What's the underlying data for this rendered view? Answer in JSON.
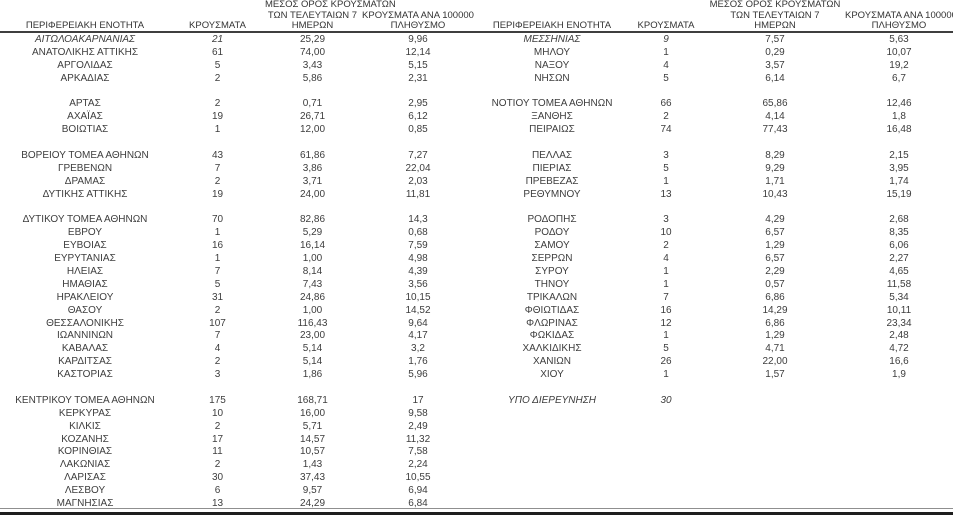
{
  "colors": {
    "text": "#3d3d3d",
    "header_text": "#333333",
    "header_underline": "#3f3f3f",
    "bottom_rule_light": "#8f8f8f",
    "bottom_rule_dark": "#1e1e1e",
    "background": "#ffffff"
  },
  "columns": {
    "region": "ΠΕΡΙΦΕΡΕΙΑΚΗ ΕΝΟΤΗΤΑ",
    "cases": "ΚΡΟΥΣΜΑΤΑ",
    "avg7_line1": "ΜΕΣΟΣ ΟΡΟΣ ΚΡΟΥΣΜΑΤΩΝ",
    "avg7_line2": "ΤΩΝ ΤΕΛΕΥΤΑΙΩΝ 7",
    "avg7_line3": "ΗΜΕΡΩΝ",
    "per100k_line1": "ΚΡΟΥΣΜΑΤΑ ΑΝΑ 100000",
    "per100k_line2": "ΠΛΗΘΥΣΜΟ"
  },
  "left_rows": [
    {
      "region": "ΑΙΤΩΛΟΑΚΑΡΝΑΝΙΑΣ",
      "cases": "21",
      "avg7": "25,29",
      "per100k": "9,96",
      "em": true
    },
    {
      "region": "ΑΝΑΤΟΛΙΚΗΣ ΑΤΤΙΚΗΣ",
      "cases": "61",
      "avg7": "74,00",
      "per100k": "12,14"
    },
    {
      "region": "ΑΡΓΟΛΙΔΑΣ",
      "cases": "5",
      "avg7": "3,43",
      "per100k": "5,15"
    },
    {
      "region": "ΑΡΚΑΔΙΑΣ",
      "cases": "2",
      "avg7": "5,86",
      "per100k": "2,31"
    },
    {
      "blank": true
    },
    {
      "region": "ΑΡΤΑΣ",
      "cases": "2",
      "avg7": "0,71",
      "per100k": "2,95"
    },
    {
      "region": "ΑΧΑΪΑΣ",
      "cases": "19",
      "avg7": "26,71",
      "per100k": "6,12"
    },
    {
      "region": "ΒΟΙΩΤΙΑΣ",
      "cases": "1",
      "avg7": "12,00",
      "per100k": "0,85"
    },
    {
      "blank": true
    },
    {
      "region": "ΒΟΡΕΙΟΥ ΤΟΜΕΑ ΑΘΗΝΩΝ",
      "cases": "43",
      "avg7": "61,86",
      "per100k": "7,27"
    },
    {
      "region": "ΓΡΕΒΕΝΩΝ",
      "cases": "7",
      "avg7": "3,86",
      "per100k": "22,04"
    },
    {
      "region": "ΔΡΑΜΑΣ",
      "cases": "2",
      "avg7": "3,71",
      "per100k": "2,03"
    },
    {
      "region": "ΔΥΤΙΚΗΣ ΑΤΤΙΚΗΣ",
      "cases": "19",
      "avg7": "24,00",
      "per100k": "11,81"
    },
    {
      "blank": true
    },
    {
      "region": "ΔΥΤΙΚΟΥ ΤΟΜΕΑ ΑΘΗΝΩΝ",
      "cases": "70",
      "avg7": "82,86",
      "per100k": "14,3"
    },
    {
      "region": "ΕΒΡΟΥ",
      "cases": "1",
      "avg7": "5,29",
      "per100k": "0,68"
    },
    {
      "region": "ΕΥΒΟΙΑΣ",
      "cases": "16",
      "avg7": "16,14",
      "per100k": "7,59"
    },
    {
      "region": "ΕΥΡΥΤΑΝΙΑΣ",
      "cases": "1",
      "avg7": "1,00",
      "per100k": "4,98"
    },
    {
      "region": "ΗΛΕΙΑΣ",
      "cases": "7",
      "avg7": "8,14",
      "per100k": "4,39"
    },
    {
      "region": "ΗΜΑΘΙΑΣ",
      "cases": "5",
      "avg7": "7,43",
      "per100k": "3,56"
    },
    {
      "region": "ΗΡΑΚΛΕΙΟΥ",
      "cases": "31",
      "avg7": "24,86",
      "per100k": "10,15"
    },
    {
      "region": "ΘΑΣΟΥ",
      "cases": "2",
      "avg7": "1,00",
      "per100k": "14,52"
    },
    {
      "region": "ΘΕΣΣΑΛΟΝΙΚΗΣ",
      "cases": "107",
      "avg7": "116,43",
      "per100k": "9,64"
    },
    {
      "region": "ΙΩΑΝΝΙΝΩΝ",
      "cases": "7",
      "avg7": "23,00",
      "per100k": "4,17"
    },
    {
      "region": "ΚΑΒΑΛΑΣ",
      "cases": "4",
      "avg7": "5,14",
      "per100k": "3,2"
    },
    {
      "region": "ΚΑΡΔΙΤΣΑΣ",
      "cases": "2",
      "avg7": "5,14",
      "per100k": "1,76"
    },
    {
      "region": "ΚΑΣΤΟΡΙΑΣ",
      "cases": "3",
      "avg7": "1,86",
      "per100k": "5,96"
    },
    {
      "blank": true
    },
    {
      "region": "ΚΕΝΤΡΙΚΟΥ ΤΟΜΕΑ ΑΘΗΝΩΝ",
      "cases": "175",
      "avg7": "168,71",
      "per100k": "17"
    },
    {
      "region": "ΚΕΡΚΥΡΑΣ",
      "cases": "10",
      "avg7": "16,00",
      "per100k": "9,58"
    },
    {
      "region": "ΚΙΛΚΙΣ",
      "cases": "2",
      "avg7": "5,71",
      "per100k": "2,49"
    },
    {
      "region": "ΚΟΖΑΝΗΣ",
      "cases": "17",
      "avg7": "14,57",
      "per100k": "11,32"
    },
    {
      "region": "ΚΟΡΙΝΘΙΑΣ",
      "cases": "11",
      "avg7": "10,57",
      "per100k": "7,58"
    },
    {
      "region": "ΛΑΚΩΝΙΑΣ",
      "cases": "2",
      "avg7": "1,43",
      "per100k": "2,24"
    },
    {
      "region": "ΛΑΡΙΣΑΣ",
      "cases": "30",
      "avg7": "37,43",
      "per100k": "10,55"
    },
    {
      "region": "ΛΕΣΒΟΥ",
      "cases": "6",
      "avg7": "9,57",
      "per100k": "6,94"
    },
    {
      "region": "ΜΑΓΝΗΣΙΑΣ",
      "cases": "13",
      "avg7": "24,29",
      "per100k": "6,84"
    }
  ],
  "right_rows": [
    {
      "region": "ΜΕΣΣΗΝΙΑΣ",
      "cases": "9",
      "avg7": "7,57",
      "per100k": "5,63",
      "em": true
    },
    {
      "region": "ΜΗΛΟΥ",
      "cases": "1",
      "avg7": "0,29",
      "per100k": "10,07"
    },
    {
      "region": "ΝΑΞΟΥ",
      "cases": "4",
      "avg7": "3,57",
      "per100k": "19,2"
    },
    {
      "region": "ΝΗΣΩΝ",
      "cases": "5",
      "avg7": "6,14",
      "per100k": "6,7"
    },
    {
      "blank": true
    },
    {
      "region": "ΝΟΤΙΟΥ ΤΟΜΕΑ ΑΘΗΝΩΝ",
      "cases": "66",
      "avg7": "65,86",
      "per100k": "12,46"
    },
    {
      "region": "ΞΑΝΘΗΣ",
      "cases": "2",
      "avg7": "4,14",
      "per100k": "1,8"
    },
    {
      "region": "ΠΕΙΡΑΙΩΣ",
      "cases": "74",
      "avg7": "77,43",
      "per100k": "16,48"
    },
    {
      "blank": true
    },
    {
      "region": "ΠΕΛΛΑΣ",
      "cases": "3",
      "avg7": "8,29",
      "per100k": "2,15"
    },
    {
      "region": "ΠΙΕΡΙΑΣ",
      "cases": "5",
      "avg7": "9,29",
      "per100k": "3,95"
    },
    {
      "region": "ΠΡΕΒΕΖΑΣ",
      "cases": "1",
      "avg7": "1,71",
      "per100k": "1,74"
    },
    {
      "region": "ΡΕΘΥΜΝΟΥ",
      "cases": "13",
      "avg7": "10,43",
      "per100k": "15,19"
    },
    {
      "blank": true
    },
    {
      "region": "ΡΟΔΟΠΗΣ",
      "cases": "3",
      "avg7": "4,29",
      "per100k": "2,68"
    },
    {
      "region": "ΡΟΔΟΥ",
      "cases": "10",
      "avg7": "6,57",
      "per100k": "8,35"
    },
    {
      "region": "ΣΑΜΟΥ",
      "cases": "2",
      "avg7": "1,29",
      "per100k": "6,06"
    },
    {
      "region": "ΣΕΡΡΩΝ",
      "cases": "4",
      "avg7": "6,57",
      "per100k": "2,27"
    },
    {
      "region": "ΣΥΡΟΥ",
      "cases": "1",
      "avg7": "2,29",
      "per100k": "4,65"
    },
    {
      "region": "ΤΗΝΟΥ",
      "cases": "1",
      "avg7": "0,57",
      "per100k": "11,58"
    },
    {
      "region": "ΤΡΙΚΑΛΩΝ",
      "cases": "7",
      "avg7": "6,86",
      "per100k": "5,34"
    },
    {
      "region": "ΦΘΙΩΤΙΔΑΣ",
      "cases": "16",
      "avg7": "14,29",
      "per100k": "10,11"
    },
    {
      "region": "ΦΛΩΡΙΝΑΣ",
      "cases": "12",
      "avg7": "6,86",
      "per100k": "23,34"
    },
    {
      "region": "ΦΩΚΙΔΑΣ",
      "cases": "1",
      "avg7": "1,29",
      "per100k": "2,48"
    },
    {
      "region": "ΧΑΛΚΙΔΙΚΗΣ",
      "cases": "5",
      "avg7": "4,71",
      "per100k": "4,72"
    },
    {
      "region": "ΧΑΝΙΩΝ",
      "cases": "26",
      "avg7": "22,00",
      "per100k": "16,6"
    },
    {
      "region": "ΧΙΟΥ",
      "cases": "1",
      "avg7": "1,57",
      "per100k": "1,9"
    },
    {
      "blank": true
    },
    {
      "region": "ΥΠΟ ΔΙΕΡΕΥΝΗΣΗ",
      "cases": "30",
      "avg7": "",
      "per100k": "",
      "em": true,
      "em_all": true
    }
  ]
}
